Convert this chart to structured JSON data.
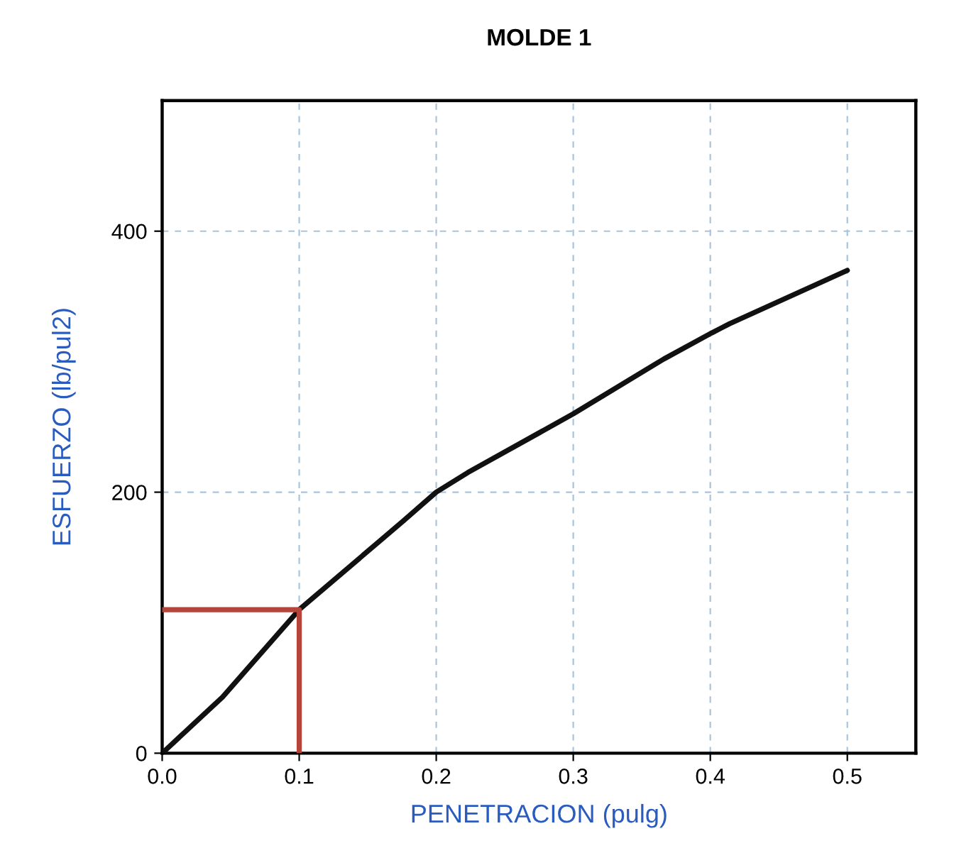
{
  "chart_data": {
    "type": "line",
    "title": "MOLDE 1",
    "xlabel": "PENETRACION (pulg)",
    "ylabel": "ESFUERZO (lb/pul2)",
    "xlim": [
      0,
      0.55
    ],
    "ylim": [
      0,
      500
    ],
    "xticks": [
      {
        "value": 0,
        "label": "0.0"
      },
      0.1,
      0.2,
      0.3,
      0.4,
      0.5
    ],
    "yticks": [
      0,
      200,
      400
    ],
    "grid": true,
    "series": [
      {
        "color": "#111111",
        "x": [
          0,
          0.044,
          0.1,
          0.176,
          0.2,
          0.223,
          0.3,
          0.366,
          0.401,
          0.414,
          0.5
        ],
        "values": [
          0,
          43,
          110,
          178,
          200,
          215,
          260,
          302,
          322,
          329,
          370
        ]
      },
      {
        "color": "#b5443a",
        "x": [
          0,
          0.1,
          0.1
        ],
        "values": [
          110,
          110,
          0
        ]
      }
    ]
  }
}
